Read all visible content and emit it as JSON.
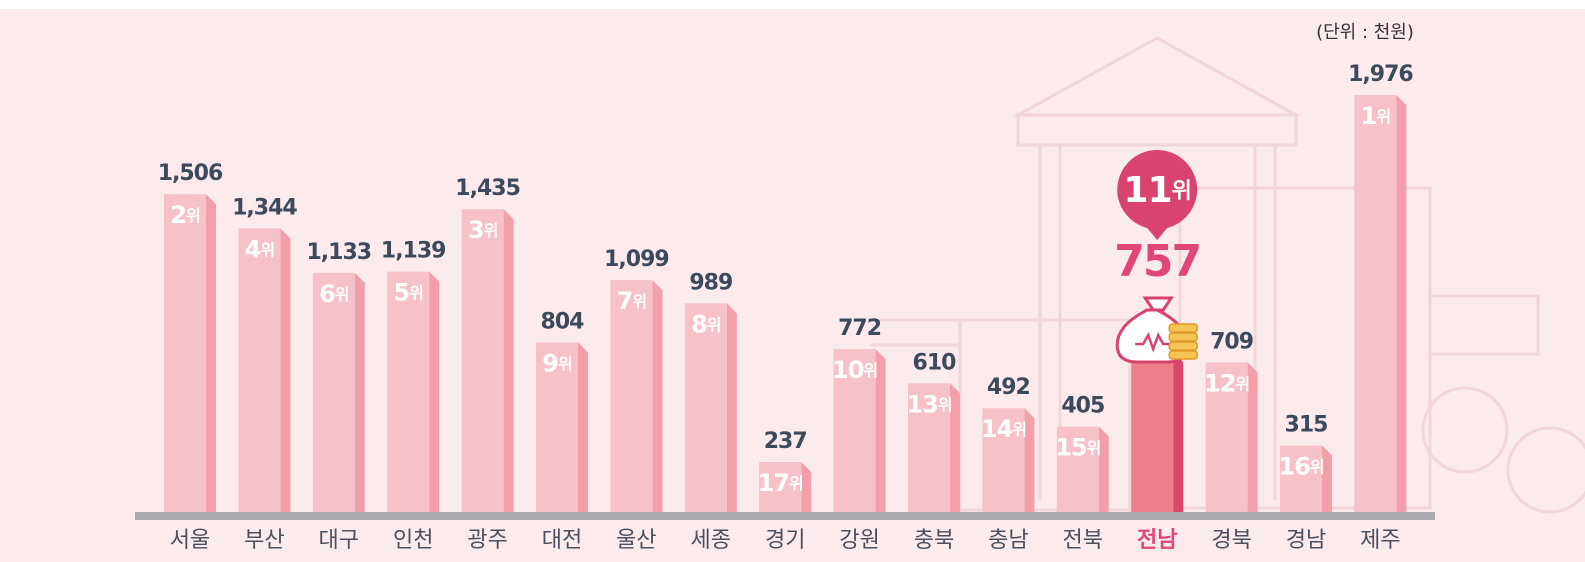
{
  "chart_data": {
    "type": "bar",
    "unit_note": "(단위 : 천원)",
    "categories": [
      "서울",
      "부산",
      "대구",
      "인천",
      "광주",
      "대전",
      "울산",
      "세종",
      "경기",
      "강원",
      "충북",
      "충남",
      "전북",
      "전남",
      "경북",
      "경남",
      "제주"
    ],
    "values": [
      1506,
      1344,
      1133,
      1139,
      1435,
      804,
      1099,
      989,
      237,
      772,
      610,
      492,
      405,
      757,
      709,
      315,
      1976
    ],
    "value_labels": [
      "1,506",
      "1,344",
      "1,133",
      "1,139",
      "1,435",
      "804",
      "1,099",
      "989",
      "237",
      "772",
      "610",
      "492",
      "405",
      "757",
      "709",
      "315",
      "1,976"
    ],
    "ranks": [
      2,
      4,
      6,
      5,
      3,
      9,
      7,
      8,
      17,
      10,
      13,
      14,
      15,
      11,
      12,
      16,
      1
    ],
    "rank_unit": "위",
    "highlight": "전남",
    "color": "#f7c1c9",
    "side_color": "#f29eab",
    "highlight_color": "#f07d8e",
    "highlight_side_color": "#d9486e",
    "ylim": [
      0,
      2000
    ]
  }
}
